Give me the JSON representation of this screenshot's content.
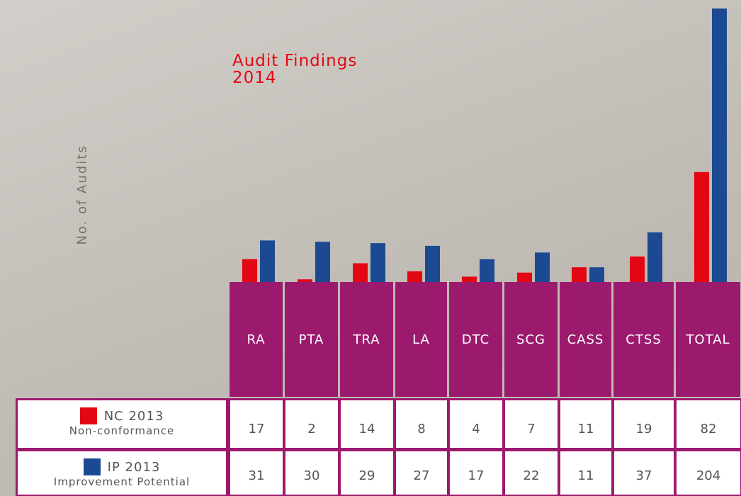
{
  "chart_data": {
    "type": "bar",
    "title": "Audit Findings 2014",
    "y_label": "No. of Audits",
    "categories": [
      "RA",
      "PTA",
      "TRA",
      "LA",
      "DTC",
      "SCG",
      "CASS",
      "CTSS",
      "TOTAL"
    ],
    "series": [
      {
        "name": "NC 2013",
        "description": "Non-conformance",
        "color": "#e30613",
        "values": [
          17,
          2,
          14,
          8,
          4,
          7,
          11,
          19,
          82
        ]
      },
      {
        "name": "IP 2013",
        "description": "Improvement Potential",
        "color": "#1b4a93",
        "values": [
          31,
          30,
          29,
          27,
          17,
          22,
          11,
          37,
          204
        ]
      }
    ]
  }
}
